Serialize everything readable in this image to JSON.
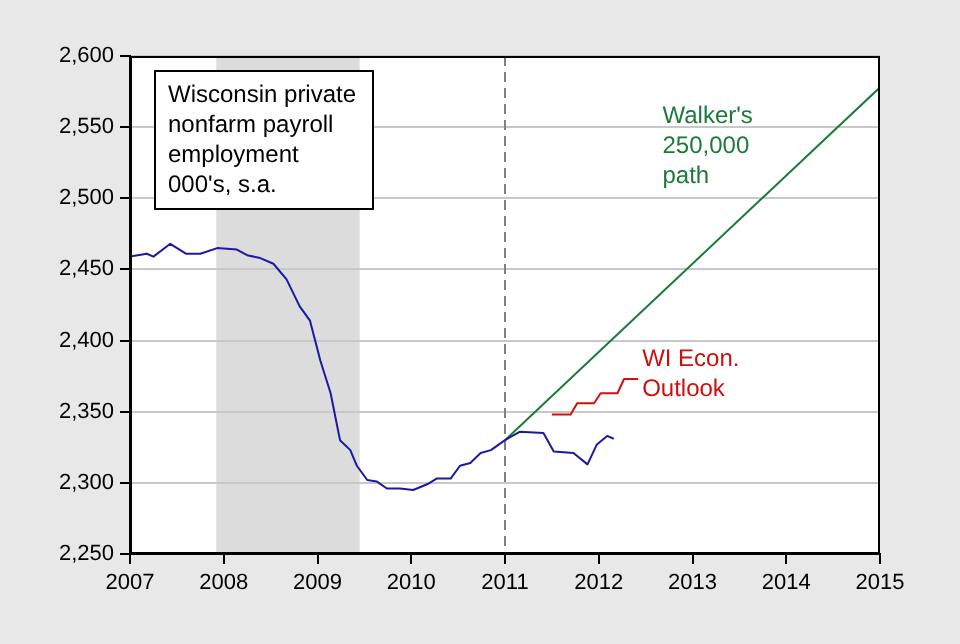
{
  "chart_data": {
    "type": "line",
    "title": "Wisconsin private\nnonfarm payroll\nemployment\n000's, s.a.",
    "xlim": [
      2007,
      2015
    ],
    "xticks": [
      2007,
      2008,
      2009,
      2010,
      2011,
      2012,
      2013,
      2014,
      2015
    ],
    "ylim": [
      2250,
      2600
    ],
    "yticks": [
      {
        "value": 2250,
        "label": "2,250"
      },
      {
        "value": 2300,
        "label": "2,300"
      },
      {
        "value": 2350,
        "label": "2,350"
      },
      {
        "value": 2400,
        "label": "2,400"
      },
      {
        "value": 2450,
        "label": "2,450"
      },
      {
        "value": 2500,
        "label": "2,500"
      },
      {
        "value": 2550,
        "label": "2,550"
      },
      {
        "value": 2600,
        "label": "2,600"
      }
    ],
    "grid": "y",
    "legend": false,
    "marker": "none",
    "series": [
      {
        "color": "#1a1aa0",
        "x": [
          2007.0,
          2007.18,
          2007.25,
          2007.43,
          2007.6,
          2007.75,
          2007.93,
          2008.14,
          2008.25,
          2008.39,
          2008.53,
          2008.67,
          2008.81,
          2008.92,
          2009.03,
          2009.14,
          2009.24,
          2009.35,
          2009.42,
          2009.53,
          2009.63,
          2009.74,
          2009.88,
          2010.02,
          2010.17,
          2010.27,
          2010.42,
          2010.52,
          2010.63,
          2010.74,
          2010.85,
          2011.0,
          2011.16,
          2011.41,
          2011.52,
          2011.73,
          2011.88,
          2011.98,
          2012.09,
          2012.16
        ],
        "values": [
          2459,
          2461,
          2459,
          2468,
          2461,
          2461,
          2465,
          2464,
          2460,
          2458,
          2454,
          2443,
          2424,
          2414,
          2386,
          2363,
          2330,
          2323,
          2312,
          2302,
          2301,
          2296,
          2296,
          2295,
          2299,
          2303,
          2303,
          2312,
          2314,
          2321,
          2323,
          2330,
          2336,
          2335,
          2322,
          2321,
          2313,
          2327,
          2333,
          2331
        ]
      },
      {
        "name": "Walker's\n250,000\npath",
        "color": "#1a7a3a",
        "x": [
          2011.0,
          2015.0
        ],
        "values": [
          2330,
          2578
        ]
      },
      {
        "name": "WI Econ.\nOutlook",
        "color": "#cc1010",
        "x": [
          2011.5,
          2011.7,
          2011.77,
          2011.95,
          2012.02,
          2012.2,
          2012.27,
          2012.42
        ],
        "values": [
          2348,
          2348,
          2356,
          2356,
          2363,
          2363,
          2373,
          2373
        ]
      }
    ],
    "bands": [
      {
        "axis": "x",
        "from": 2007.92,
        "to": 2009.45,
        "color": "#dcdcdc"
      }
    ],
    "ref_lines": [
      {
        "axis": "x",
        "value": 2011,
        "color": "#808080",
        "line_style": "dashed"
      }
    ]
  }
}
